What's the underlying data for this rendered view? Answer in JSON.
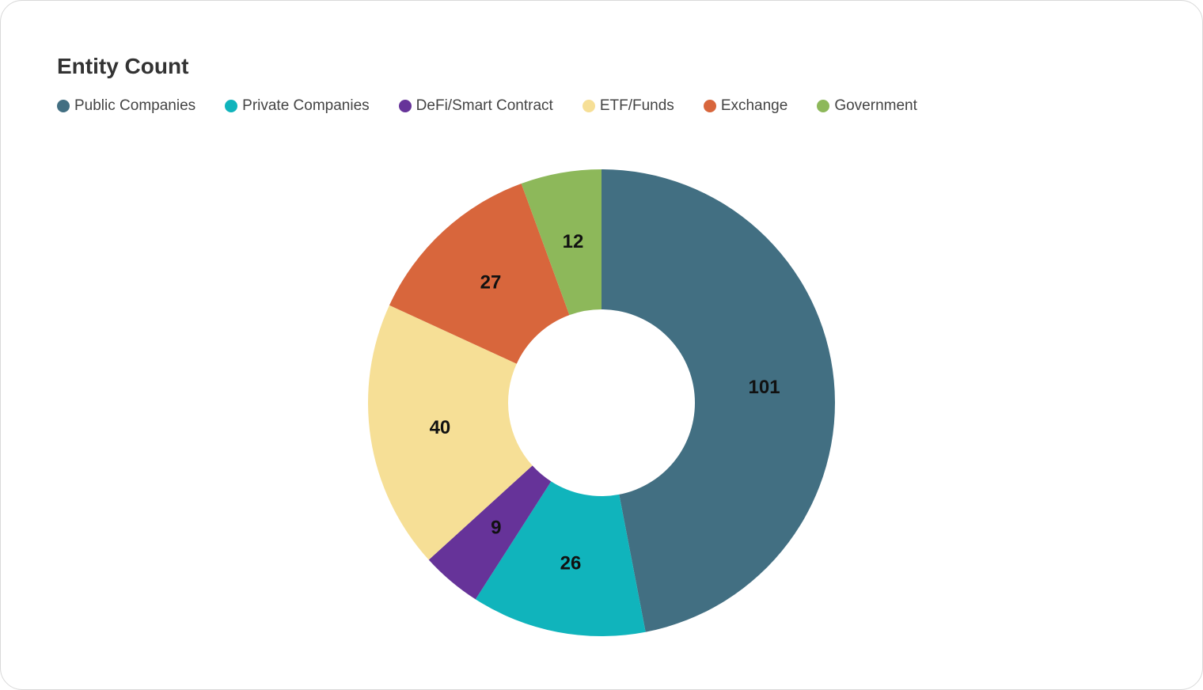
{
  "chart_data": {
    "type": "pie",
    "donut": true,
    "title": "Entity Count",
    "legend_position": "top-left",
    "categories": [
      "Public Companies",
      "Private Companies",
      "DeFi/Smart Contract",
      "ETF/Funds",
      "Exchange",
      "Government"
    ],
    "values": [
      101,
      26,
      9,
      40,
      27,
      12
    ],
    "colors": [
      "#426f82",
      "#10b4bc",
      "#663399",
      "#f6df96",
      "#d8663c",
      "#8db85a"
    ],
    "labels": [
      "101",
      "26",
      "9",
      "40",
      "27",
      "12"
    ]
  }
}
